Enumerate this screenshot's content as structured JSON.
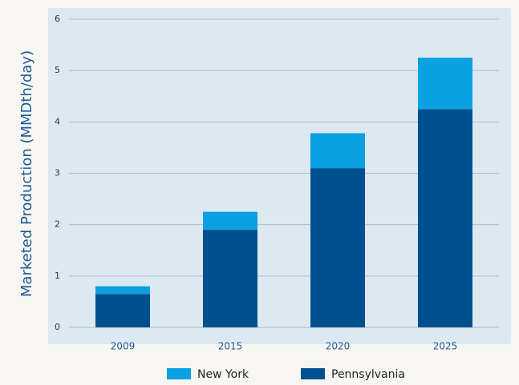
{
  "chart_data": {
    "type": "stacked_bar",
    "y_label": "Marketed Production (MMDth/day)",
    "categories": [
      "2009",
      "2015",
      "2020",
      "2025"
    ],
    "series": [
      {
        "name": "New York",
        "color": "#0aa0e2",
        "values": [
          0.15,
          0.35,
          0.68,
          1.0
        ]
      },
      {
        "name": "Pennsylvania",
        "color": "#00508f",
        "values": [
          0.65,
          1.9,
          3.1,
          4.25
        ]
      }
    ],
    "ylim": [
      0,
      6
    ],
    "yticks": [
      0,
      1,
      2,
      3,
      4,
      5,
      6
    ],
    "grid": true
  }
}
